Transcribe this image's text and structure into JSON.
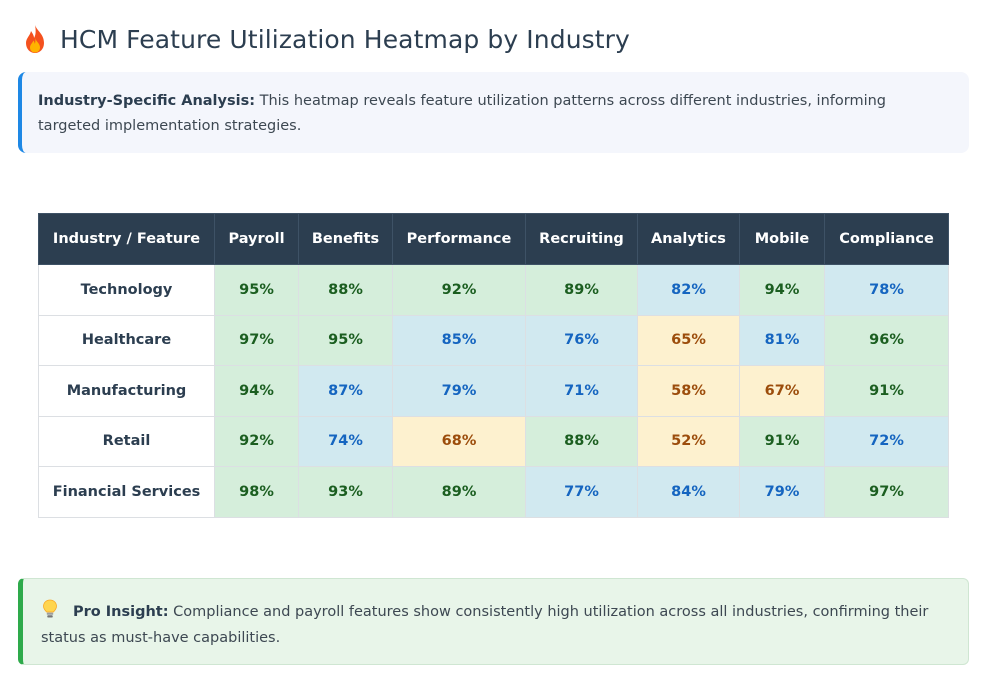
{
  "header": {
    "title": "HCM Feature Utilization Heatmap by Industry",
    "icon": "flame-icon"
  },
  "info": {
    "label": "Industry-Specific Analysis:",
    "text": " This heatmap reveals feature utilization patterns across different industries, informing targeted implementation strategies."
  },
  "chart_data": {
    "type": "heatmap",
    "corner_header": "Industry / Feature",
    "columns": [
      "Payroll",
      "Benefits",
      "Performance",
      "Recruiting",
      "Analytics",
      "Mobile",
      "Compliance"
    ],
    "rows": [
      "Technology",
      "Healthcare",
      "Manufacturing",
      "Retail",
      "Financial Services"
    ],
    "values": [
      [
        95,
        88,
        92,
        89,
        82,
        94,
        78
      ],
      [
        97,
        95,
        85,
        76,
        65,
        81,
        96
      ],
      [
        94,
        87,
        79,
        71,
        58,
        67,
        91
      ],
      [
        92,
        74,
        68,
        88,
        52,
        91,
        72
      ],
      [
        98,
        93,
        89,
        77,
        84,
        79,
        97
      ]
    ],
    "unit": "%",
    "colors": {
      "high_bg": "#d5eedb",
      "high_text": "#1b5e20",
      "mid_bg": "#d1e9f0",
      "mid_text": "#1565c0",
      "low_bg": "#fdf1cf",
      "low_text": "#9c4d0c"
    }
  },
  "insight": {
    "icon": "lightbulb-icon",
    "label": "Pro Insight:",
    "text": " Compliance and payroll features show consistently high utilization across all industries, confirming their status as must-have capabilities."
  }
}
